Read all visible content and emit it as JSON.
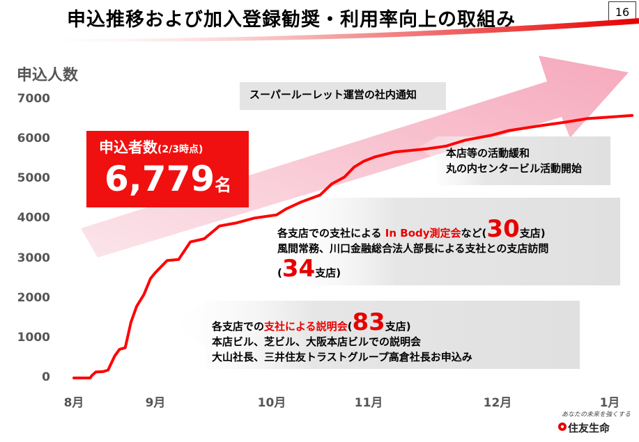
{
  "page": {
    "title": "申込推移および加入登録勧奨・利用率向上の取組み",
    "page_number": "16"
  },
  "chart_data": {
    "type": "line",
    "ylabel": "申込人数",
    "ylim": [
      0,
      7000
    ],
    "y_ticks": [
      "0",
      "1000",
      "2000",
      "3000",
      "4000",
      "5000",
      "6000",
      "7000"
    ],
    "x_ticks": [
      "8月",
      "9月",
      "10月",
      "11月",
      "12月",
      "1月"
    ],
    "x_tick_positions_months": [
      0,
      1,
      2,
      3,
      4,
      5
    ],
    "series": [
      {
        "color": "#ff0000",
        "points": [
          [
            0.0,
            0
          ],
          [
            0.2,
            0
          ],
          [
            0.22,
            60
          ],
          [
            0.27,
            150
          ],
          [
            0.36,
            160
          ],
          [
            0.42,
            200
          ],
          [
            0.5,
            550
          ],
          [
            0.56,
            720
          ],
          [
            0.63,
            760
          ],
          [
            0.7,
            1400
          ],
          [
            0.77,
            1800
          ],
          [
            0.86,
            2100
          ],
          [
            0.94,
            2500
          ],
          [
            1.0,
            2650
          ],
          [
            1.1,
            2950
          ],
          [
            1.2,
            2980
          ],
          [
            1.3,
            3420
          ],
          [
            1.42,
            3500
          ],
          [
            1.55,
            3820
          ],
          [
            1.7,
            3900
          ],
          [
            1.85,
            4020
          ],
          [
            2.05,
            4100
          ],
          [
            2.15,
            4250
          ],
          [
            2.3,
            4420
          ],
          [
            2.5,
            4600
          ],
          [
            2.62,
            4880
          ],
          [
            2.75,
            5050
          ],
          [
            2.85,
            5300
          ],
          [
            2.95,
            5450
          ],
          [
            3.05,
            5560
          ],
          [
            3.2,
            5680
          ],
          [
            3.45,
            5760
          ],
          [
            3.6,
            5830
          ],
          [
            3.75,
            5980
          ],
          [
            3.95,
            6100
          ],
          [
            4.1,
            6220
          ],
          [
            4.4,
            6350
          ],
          [
            4.6,
            6430
          ],
          [
            4.8,
            6520
          ],
          [
            5.1,
            6580
          ],
          [
            5.2,
            6600
          ]
        ]
      }
    ],
    "trend_arrow_color": "#f7b7c7"
  },
  "total_box": {
    "label": "申込者数",
    "sub": "(2/3時点)",
    "value": "6,779",
    "unit": "名"
  },
  "callouts": {
    "c1": {
      "line1": "スーパールーレット運営の社内通知"
    },
    "c2": {
      "line1": "本店等の活動緩和",
      "line2": "丸の内センタービル活動開始"
    },
    "c3": {
      "line1_pre": "各支店での支社による",
      "line1_red": "In Body測定会",
      "line1_mid": "など(",
      "line1_num": "30",
      "line1_post": "支店)",
      "line2": "風間常務、川口金融総合法人部長による支社との支店訪問",
      "line3_pre": "(",
      "line3_num": "34",
      "line3_post": "支店)"
    },
    "c4": {
      "line1_pre": "各支店での",
      "line1_red": "支社による説明会",
      "line1_mid": "(",
      "line1_num": "83",
      "line1_post": "支店)",
      "line2": "本店ビル、芝ビル、大阪本店ビルでの説明会",
      "line3": "大山社長、三井住友トラストグループ高倉社長お申込み"
    }
  },
  "logo": {
    "tagline": "あなたの未来を強くする",
    "name": "住友生命"
  }
}
